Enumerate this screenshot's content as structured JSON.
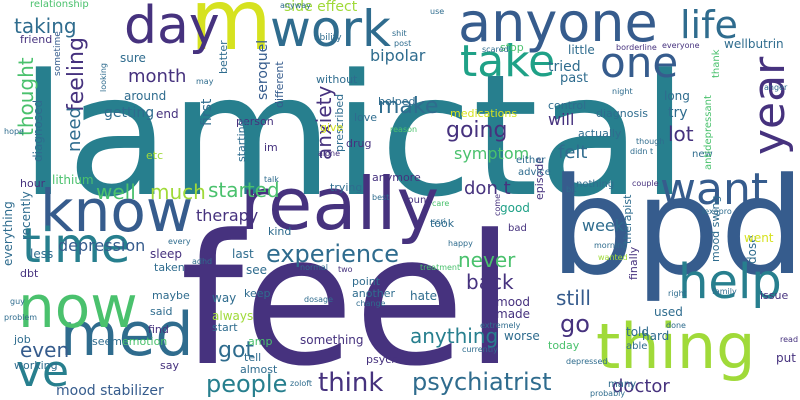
{
  "palette": {
    "dark_purple": "#46327e",
    "indigo": "#365c8d",
    "blue": "#2f6c8e",
    "teal": "#277f8e",
    "teal_green": "#1fa187",
    "green": "#4ac16d",
    "light_green": "#a0da39",
    "yellow": "#d6e21f"
  },
  "words": {
    "lamictal": "lamictal",
    "feel": "feel",
    "bpd": "bpd",
    "really": "really",
    "know": "know",
    "anyone": "anyone",
    "work": "work",
    "m": "m",
    "day": "day",
    "life": "life",
    "one": "one",
    "take": "take",
    "year": "year",
    "thing": "thing",
    "med": "med",
    "now": "now",
    "time": "time",
    "want": "want",
    "help": "help",
    "ve": "ve",
    "psychiatrist": "psychiatrist",
    "think": "think",
    "people": "people",
    "experience": "experience",
    "going": "going",
    "feeling": "feeling",
    "anxiety": "anxiety",
    "thought": "thought",
    "taking": "taking",
    "much": "much",
    "started": "started",
    "well": "well",
    "make": "make",
    "month": "month",
    "go": "go",
    "still": "still",
    "back": "back",
    "never": "never",
    "anything": "anything",
    "lot": "lot",
    "doctor": "doctor",
    "got": "got",
    "even": "even",
    "mood_stabilizer": "mood stabilizer",
    "need": "need",
    "don_t": "don t",
    "week": "week",
    "felt": "felt",
    "will": "will",
    "symptom": "symptom",
    "therapy": "therapy",
    "depression": "depression",
    "side_effect": "side effect",
    "bipolar": "bipolar",
    "seroquel": "seroquel",
    "tried": "tried",
    "past": "past",
    "little": "little",
    "wellbutrin": "wellbutrin",
    "stop": "stop",
    "sure": "sure",
    "around": "around",
    "getting": "getting",
    "first": "first",
    "end": "end",
    "person": "person",
    "better": "better",
    "different": "different",
    "without": "without",
    "helped": "helped",
    "medications": "medications",
    "control": "control",
    "diagnosis": "diagnosis",
    "long": "long",
    "try": "try",
    "actually": "actually",
    "anymore": "anymore",
    "trying": "trying",
    "something": "something",
    "always": "always",
    "see": "see",
    "way": "way",
    "mood": "mood",
    "made": "made",
    "good": "good",
    "took": "took",
    "told": "told",
    "hard": "hard",
    "used": "used",
    "worse": "worse",
    "today": "today",
    "episode": "episode",
    "finally": "finally",
    "therapist": "therapist",
    "mood_swing": "mood swing",
    "dose": "dose",
    "put": "put",
    "issue": "issue",
    "went": "went",
    "lithium": "lithium",
    "diagnosed": "diagnosed",
    "everything": "everything",
    "recently": "recently",
    "less": "less",
    "dbt": "dbt",
    "last": "last",
    "sleep": "sleep",
    "taken": "taken",
    "maybe": "maybe",
    "said": "said",
    "find": "find",
    "seem": "seem",
    "emotion": "emotion",
    "working": "working",
    "job": "job",
    "say": "say",
    "hate": "hate",
    "another": "another",
    "point": "point",
    "psych": "psych",
    "almost": "almost",
    "tell": "tell",
    "keep": "keep",
    "start": "start",
    "amp": "amp",
    "kind": "kind",
    "drug": "drug",
    "prescribed": "prescribed",
    "love": "love",
    "give": "give",
    "im": "im",
    "starting": "starting",
    "etc": "etc",
    "hour": "hour",
    "friend": "friend",
    "relationship": "relationship",
    "sometime": "sometime",
    "ability": "ability",
    "post": "post",
    "use": "use",
    "borderline": "borderline",
    "everyone": "everyone",
    "thank": "thank",
    "anger": "anger",
    "night": "night",
    "advice": "advice",
    "either": "either",
    "new": "new",
    "antidepressant": "antidepressant",
    "nothing": "nothing",
    "couple": "couple",
    "found": "found",
    "come": "come",
    "bad": "bad",
    "ssri": "ssri",
    "happy": "happy",
    "lexapro": "lexapro",
    "morning": "morning",
    "wanted": "wanted",
    "right": "right",
    "family": "family",
    "currently": "currently",
    "depressed": "depressed",
    "probably": "probably",
    "many": "many",
    "able": "able",
    "done": "done",
    "read": "read",
    "zoloft": "zoloft",
    "normal": "normal",
    "two": "two",
    "dosage": "dosage",
    "change": "change",
    "extremely": "extremely",
    "treatment": "treatment",
    "alone": "alone",
    "reason": "reason",
    "scared": "scared",
    "shit": "shit",
    "anyway": "anyway",
    "talk": "talk",
    "hope": "hope",
    "guy": "guy",
    "problem": "problem",
    "adhd": "adhd",
    "every": "every",
    "didn_t": "didn t",
    "though": "though",
    "care": "care",
    "bit": "bit",
    "best": "best",
    "looking": "looking",
    "may": "may"
  }
}
